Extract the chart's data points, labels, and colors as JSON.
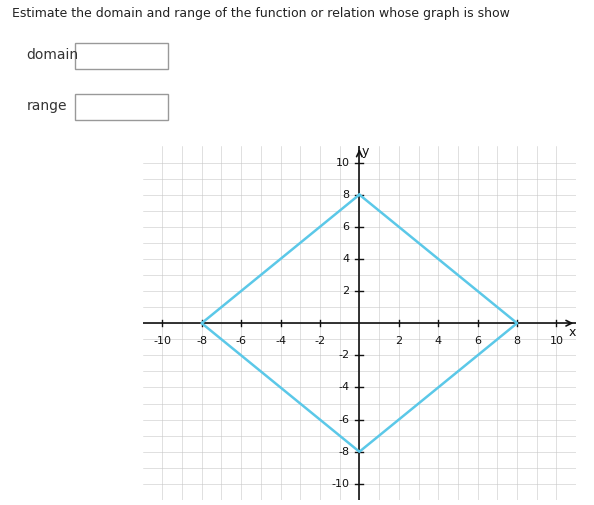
{
  "title": "Estimate the domain and range of the function or relation whose graph is show",
  "diamond_vertices_x": [
    0,
    8,
    0,
    -8,
    0
  ],
  "diamond_vertices_y": [
    8,
    0,
    -8,
    0,
    8
  ],
  "line_color": "#5bc8e8",
  "line_width": 1.8,
  "xlim": [
    -11,
    11
  ],
  "ylim": [
    -11,
    11
  ],
  "xticks": [
    -10,
    -8,
    -6,
    -4,
    -2,
    2,
    4,
    6,
    8,
    10
  ],
  "yticks": [
    -10,
    -8,
    -6,
    -4,
    -2,
    2,
    4,
    6,
    8,
    10
  ],
  "xlabel": "x",
  "ylabel": "y",
  "grid_color": "#c8c8c8",
  "minor_grid_color": "#e0e0e0",
  "axis_color": "#111111",
  "bg_color": "#ffffff",
  "domain_label": "domain",
  "range_label": "range",
  "header_bg": "#c8c8c8",
  "header_text_color": "#222222",
  "label_text_color": "#333333",
  "box_edge_color": "#999999",
  "title_fontsize": 9,
  "label_fontsize": 10,
  "tick_fontsize": 8
}
